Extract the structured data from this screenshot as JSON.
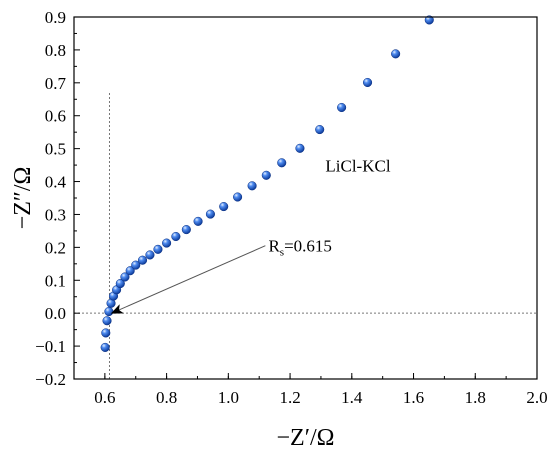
{
  "chart_data": {
    "type": "scatter",
    "xlabel": "−Z′/Ω",
    "ylabel": "−Z″/Ω",
    "xlim": [
      0.5,
      2.0
    ],
    "ylim": [
      -0.2,
      0.9
    ],
    "x_ticks": [
      0.6,
      0.8,
      1.0,
      1.2,
      1.4,
      1.6,
      1.8,
      2.0
    ],
    "x_tick_labels": [
      "0.6",
      "0.8",
      "1.0",
      "1.2",
      "1.4",
      "1.6",
      "1.8",
      "2.0"
    ],
    "y_ticks": [
      -0.2,
      -0.1,
      0.0,
      0.1,
      0.2,
      0.3,
      0.4,
      0.5,
      0.6,
      0.7,
      0.8,
      0.9
    ],
    "y_tick_labels": [
      "−0.2",
      "−0.1",
      "0.0",
      "0.1",
      "0.2",
      "0.3",
      "0.4",
      "0.5",
      "0.6",
      "0.7",
      "0.8",
      "0.9"
    ],
    "grid": false,
    "marker_color": "#2a66d4",
    "series": [
      {
        "points": [
          {
            "x": 0.601,
            "y": -0.104
          },
          {
            "x": 0.603,
            "y": -0.06
          },
          {
            "x": 0.607,
            "y": -0.023
          },
          {
            "x": 0.613,
            "y": 0.005
          },
          {
            "x": 0.62,
            "y": 0.03
          },
          {
            "x": 0.628,
            "y": 0.052
          },
          {
            "x": 0.638,
            "y": 0.071
          },
          {
            "x": 0.65,
            "y": 0.09
          },
          {
            "x": 0.665,
            "y": 0.11
          },
          {
            "x": 0.682,
            "y": 0.129
          },
          {
            "x": 0.7,
            "y": 0.146
          },
          {
            "x": 0.722,
            "y": 0.161
          },
          {
            "x": 0.746,
            "y": 0.177
          },
          {
            "x": 0.772,
            "y": 0.194
          },
          {
            "x": 0.8,
            "y": 0.213
          },
          {
            "x": 0.83,
            "y": 0.233
          },
          {
            "x": 0.864,
            "y": 0.254
          },
          {
            "x": 0.902,
            "y": 0.279
          },
          {
            "x": 0.942,
            "y": 0.301
          },
          {
            "x": 0.985,
            "y": 0.324
          },
          {
            "x": 1.03,
            "y": 0.353
          },
          {
            "x": 1.077,
            "y": 0.387
          },
          {
            "x": 1.123,
            "y": 0.419
          },
          {
            "x": 1.173,
            "y": 0.457
          },
          {
            "x": 1.232,
            "y": 0.501
          },
          {
            "x": 1.296,
            "y": 0.558
          },
          {
            "x": 1.367,
            "y": 0.625
          },
          {
            "x": 1.451,
            "y": 0.701
          },
          {
            "x": 1.542,
            "y": 0.788
          },
          {
            "x": 1.651,
            "y": 0.891
          }
        ]
      }
    ],
    "reference_lines": {
      "vertical_x": 0.615,
      "vertical_y_top": 0.67,
      "horizontal_y": 0.0
    },
    "annotations": {
      "series_label": "LiCl-KCl",
      "series_label_pos": {
        "x": 1.42,
        "y": 0.43
      },
      "rs_main": "R",
      "rs_sub": "s",
      "rs_value": "=0.615",
      "rs_label_pos": {
        "x": 1.13,
        "y": 0.205
      },
      "arrow_from": {
        "x": 1.12,
        "y": 0.205
      },
      "arrow_to": {
        "x": 0.622,
        "y": 0.0
      }
    }
  }
}
